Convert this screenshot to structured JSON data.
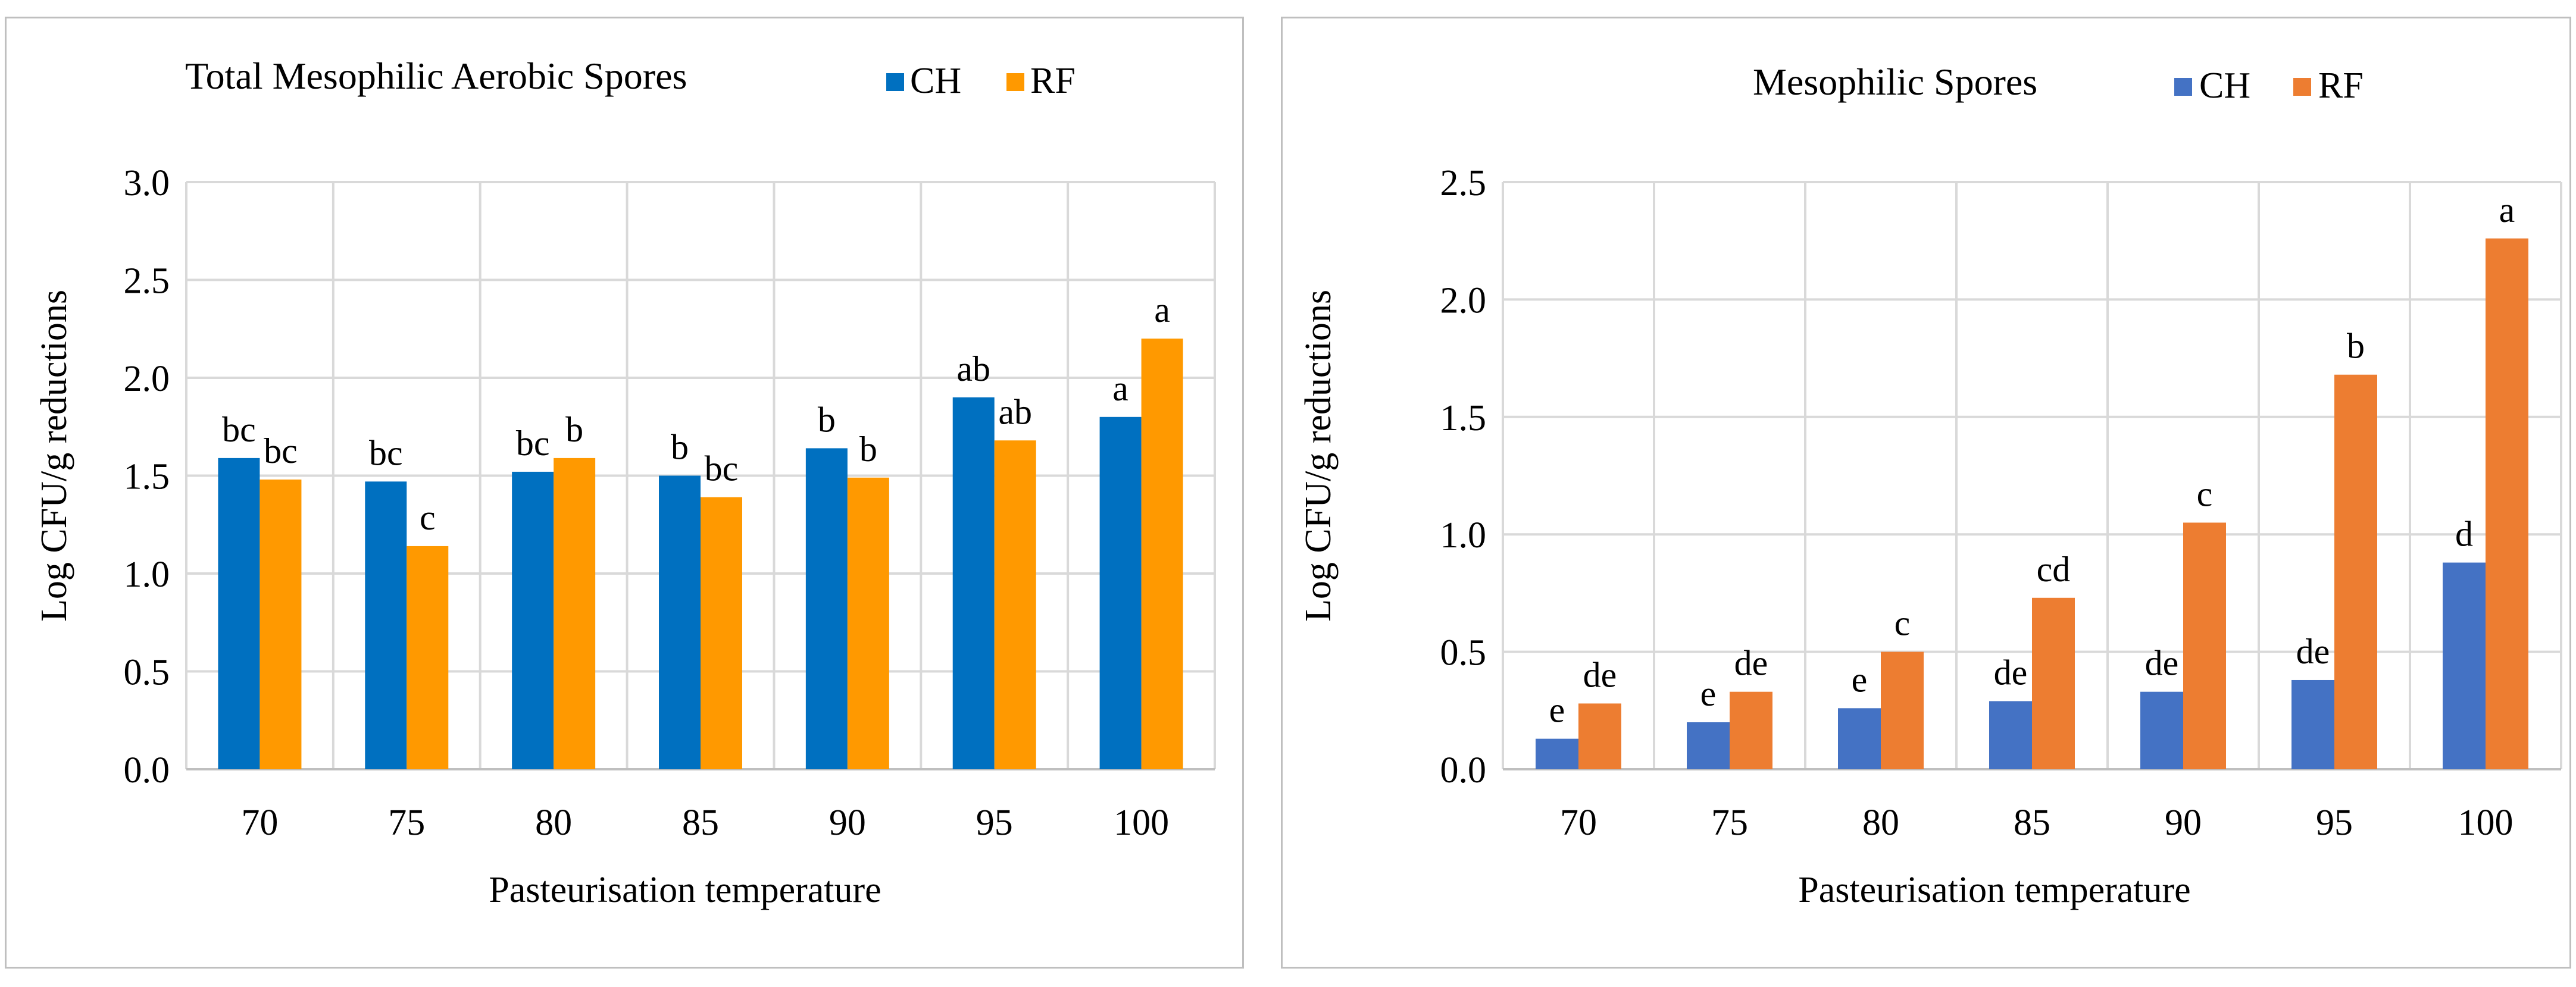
{
  "chart_data": [
    {
      "type": "bar",
      "title": "Total Mesophilic Aerobic Spores",
      "xlabel": "Pasteurisation temperature",
      "ylabel": "Log CFU/g reductions",
      "ylim": [
        0,
        3.0
      ],
      "yticks": [
        "0.0",
        "0.5",
        "1.0",
        "1.5",
        "2.0",
        "2.5",
        "3.0"
      ],
      "grid": true,
      "legend_position": "top-right",
      "categories": [
        "70",
        "75",
        "80",
        "85",
        "90",
        "95",
        "100"
      ],
      "series": [
        {
          "name": "CH",
          "color": "#0070C0",
          "values": [
            1.59,
            1.47,
            1.52,
            1.5,
            1.64,
            1.9,
            1.8
          ],
          "labels": [
            "bc",
            "bc",
            "bc",
            "b",
            "b",
            "ab",
            "a"
          ]
        },
        {
          "name": "RF",
          "color": "#FF9900",
          "values": [
            1.48,
            1.14,
            1.59,
            1.39,
            1.49,
            1.68,
            2.2
          ],
          "labels": [
            "bc",
            "c",
            "b",
            "bc",
            "b",
            "ab",
            "a"
          ]
        }
      ]
    },
    {
      "type": "bar",
      "title": "Mesophilic Spores",
      "xlabel": "Pasteurisation temperature",
      "ylabel": "Log CFU/g reductions",
      "ylim": [
        0,
        2.5
      ],
      "yticks": [
        "0.0",
        "0.5",
        "1.0",
        "1.5",
        "2.0",
        "2.5"
      ],
      "grid": true,
      "legend_position": "top-right",
      "categories": [
        "70",
        "75",
        "80",
        "85",
        "90",
        "95",
        "100"
      ],
      "series": [
        {
          "name": "CH",
          "color": "#4472C4",
          "values": [
            0.13,
            0.2,
            0.26,
            0.29,
            0.33,
            0.38,
            0.88
          ],
          "labels": [
            "e",
            "e",
            "e",
            "de",
            "de",
            "de",
            "d"
          ]
        },
        {
          "name": "RF",
          "color": "#ED7D31",
          "values": [
            0.28,
            0.33,
            0.5,
            0.73,
            1.05,
            1.68,
            2.26
          ],
          "labels": [
            "de",
            "de",
            "c",
            "cd",
            "c",
            "b",
            "a"
          ]
        }
      ]
    }
  ]
}
